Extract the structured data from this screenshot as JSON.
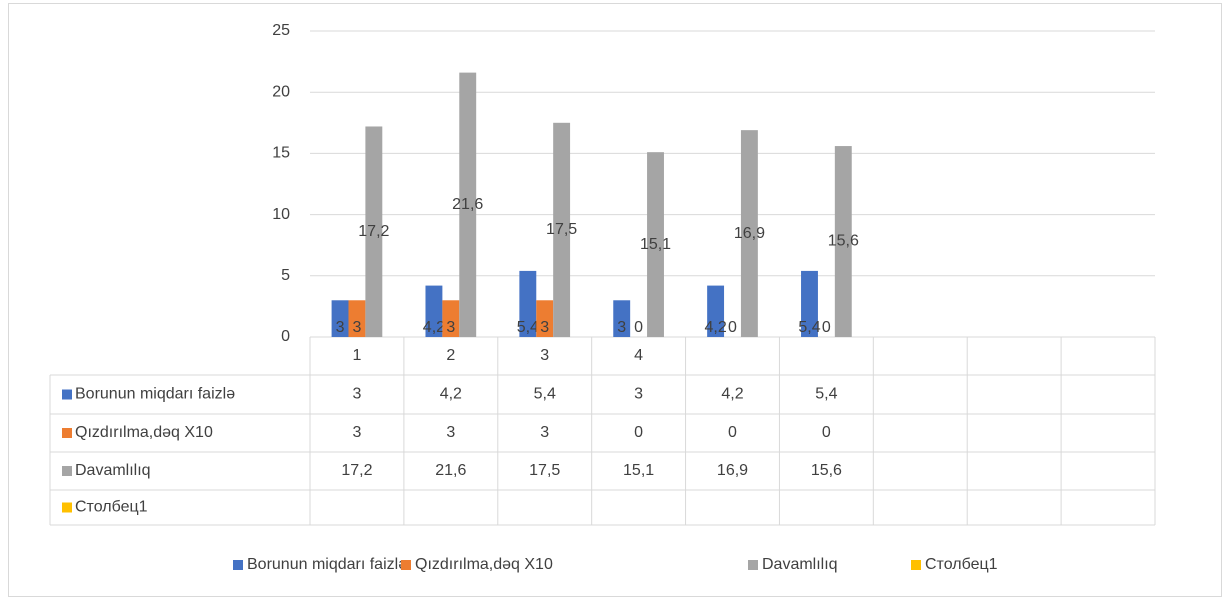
{
  "chart_data": {
    "type": "bar",
    "categories": [
      "1",
      "2",
      "3",
      "4",
      null,
      null,
      null,
      null,
      null
    ],
    "series": [
      {
        "name": "Borunun miqdarı faizlə",
        "color": "#4472c4",
        "values": [
          3,
          4.2,
          5.4,
          3,
          4.2,
          5.4,
          null,
          null,
          null
        ],
        "value_labels": [
          "3",
          "4,2",
          "5,4",
          "3",
          "4,2",
          "5,4",
          null,
          null,
          null
        ]
      },
      {
        "name": "Qızdırılma,dəq X10",
        "color": "#ed7d31",
        "values": [
          3,
          3,
          3,
          0,
          0,
          0,
          null,
          null,
          null
        ]
      },
      {
        "name": "Davamlılıq",
        "color": "#a5a5a5",
        "values": [
          17.2,
          21.6,
          17.5,
          15.1,
          16.9,
          15.6,
          null,
          null,
          null
        ],
        "value_labels": [
          "17,2",
          "21,6",
          "17,5",
          "15,1",
          "16,9",
          "15,6",
          null,
          null,
          null
        ]
      },
      {
        "name": "Столбец1",
        "color": "#ffc000",
        "values": [
          null,
          null,
          null,
          null,
          null,
          null,
          null,
          null,
          null
        ]
      }
    ],
    "ylim": [
      0,
      25
    ],
    "yticks": [
      0,
      5,
      10,
      15,
      20,
      25
    ],
    "grid": true,
    "legend": "bottom",
    "data_table": true
  }
}
